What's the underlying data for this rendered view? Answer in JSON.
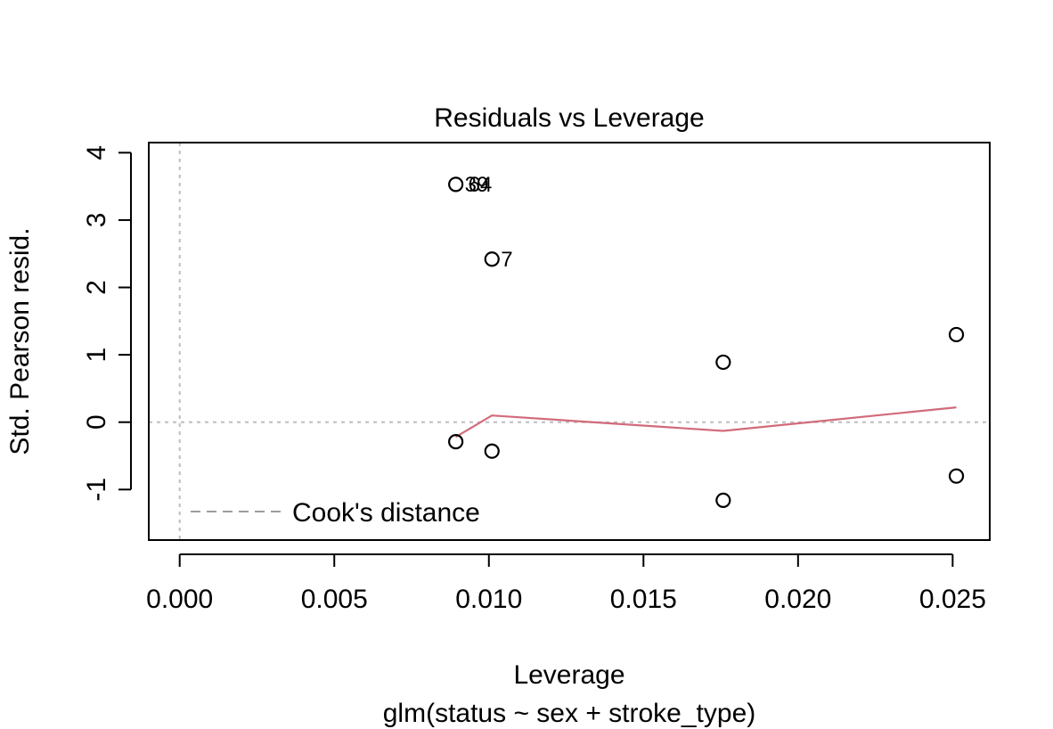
{
  "chart_data": {
    "type": "scatter",
    "title": "Residuals vs Leverage",
    "xlabel": "Leverage",
    "subtitle": "glm(status ~ sex + stroke_type)",
    "ylabel": "Std. Pearson resid.",
    "xlim": [
      -0.001,
      0.0262
    ],
    "ylim": [
      -1.75,
      4.15
    ],
    "x_ticks": [
      {
        "value": 0.0,
        "label": "0.000"
      },
      {
        "value": 0.005,
        "label": "0.005"
      },
      {
        "value": 0.01,
        "label": "0.010"
      },
      {
        "value": 0.015,
        "label": "0.015"
      },
      {
        "value": 0.02,
        "label": "0.020"
      },
      {
        "value": 0.025,
        "label": "0.025"
      }
    ],
    "y_ticks": [
      {
        "value": -1,
        "label": "-1"
      },
      {
        "value": 0,
        "label": "0"
      },
      {
        "value": 1,
        "label": "1"
      },
      {
        "value": 2,
        "label": "2"
      },
      {
        "value": 3,
        "label": "3"
      },
      {
        "value": 4,
        "label": "4"
      }
    ],
    "points": [
      {
        "x": 0.00893,
        "y": 3.53,
        "label": "39"
      },
      {
        "x": 0.00893,
        "y": -0.29,
        "label": ""
      },
      {
        "x": 0.0101,
        "y": 2.42,
        "label": "7"
      },
      {
        "x": 0.0101,
        "y": -0.43,
        "label": ""
      },
      {
        "x": 0.01758,
        "y": 0.89,
        "label": ""
      },
      {
        "x": 0.01758,
        "y": -1.16,
        "label": ""
      },
      {
        "x": 0.02512,
        "y": 1.3,
        "label": ""
      },
      {
        "x": 0.02512,
        "y": -0.8,
        "label": ""
      }
    ],
    "overlap_label": {
      "x": 0.00893,
      "y": 3.53,
      "label": "64"
    },
    "smooth_line": {
      "color": "#d16b7a",
      "points": [
        {
          "x": 0.00893,
          "y": -0.22
        },
        {
          "x": 0.0101,
          "y": 0.1
        },
        {
          "x": 0.01758,
          "y": -0.13
        },
        {
          "x": 0.02512,
          "y": 0.22
        }
      ]
    },
    "reference_lines": {
      "h": 0,
      "v": 0,
      "color": "#bdbdbd"
    },
    "legend": {
      "label": "Cook's distance",
      "placement": "bottom-left",
      "color": "#9e9e9e"
    },
    "grid": false
  }
}
